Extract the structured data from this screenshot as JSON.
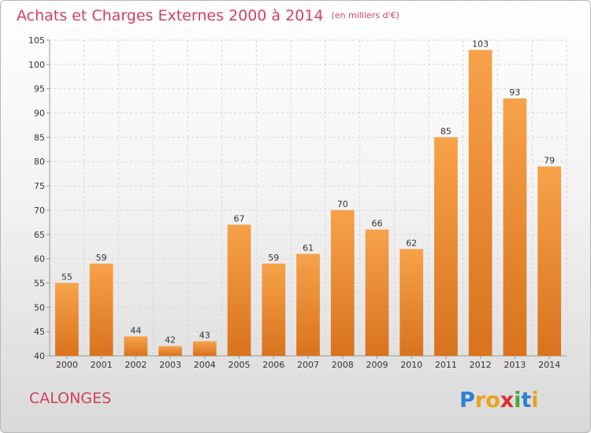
{
  "header": {
    "title": "Achats et Charges Externes 2000 à 2014",
    "unit": "(en milliers d'€)"
  },
  "footer": {
    "commune": "CALONGES",
    "brand": "Proxiti"
  },
  "colors": {
    "title": "#d0415f",
    "bar_top": "#f7a24a",
    "bar_bottom": "#d9731d",
    "grid": "#d6d6d6"
  },
  "chart_data": {
    "type": "bar",
    "title": "Achats et Charges Externes 2000 à 2014",
    "subtitle": "(en milliers d'€)",
    "xlabel": "",
    "ylabel": "",
    "categories": [
      "2000",
      "2001",
      "2002",
      "2003",
      "2004",
      "2005",
      "2006",
      "2007",
      "2008",
      "2009",
      "2010",
      "2011",
      "2012",
      "2013",
      "2014"
    ],
    "values": [
      55,
      59,
      44,
      42,
      43,
      67,
      59,
      61,
      70,
      66,
      62,
      85,
      103,
      93,
      79
    ],
    "ylim": [
      40,
      105
    ],
    "yticks": [
      40,
      45,
      50,
      55,
      60,
      65,
      70,
      75,
      80,
      85,
      90,
      95,
      100,
      105
    ],
    "grid": true,
    "data_labels": true
  }
}
